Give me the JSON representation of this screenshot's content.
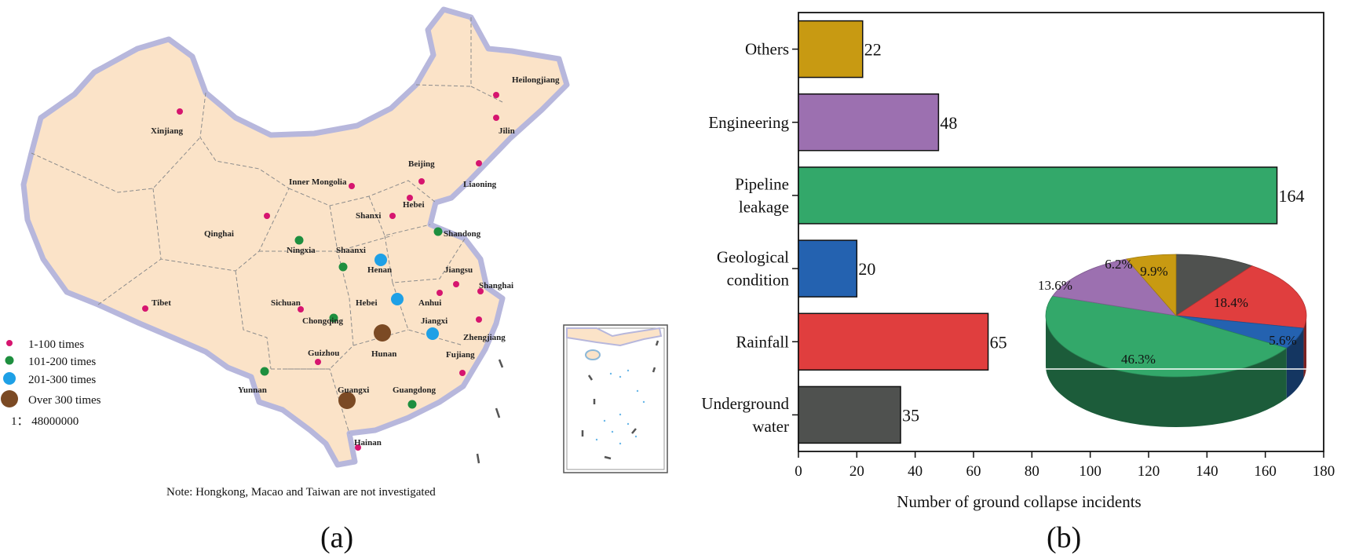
{
  "panel_a": {
    "label": "(a)",
    "note": "Note: Hongkong, Macao and Taiwan are not investigated",
    "scale": "1： 48000000",
    "legend": [
      {
        "label": "1-100 times",
        "color": "#d6156f",
        "size": "small"
      },
      {
        "label": "101-200 times",
        "color": "#1e8f3f",
        "size": "medium"
      },
      {
        "label": "201-300 times",
        "color": "#1ea0e6",
        "size": "large"
      },
      {
        "label": "Over 300 times",
        "color": "#7b4a24",
        "size": "xlarge"
      }
    ],
    "provinces": [
      {
        "name": "Heilongjiang",
        "level": 1
      },
      {
        "name": "Jilin",
        "level": 1
      },
      {
        "name": "Xinjiang",
        "level": 1
      },
      {
        "name": "Liaoning",
        "level": 1
      },
      {
        "name": "Beijing",
        "level": 1
      },
      {
        "name": "Inner Mongolia",
        "level": 1
      },
      {
        "name": "Hebei",
        "level": 1
      },
      {
        "name": "Shanxi",
        "level": 1
      },
      {
        "name": "Qinghai",
        "level": 1
      },
      {
        "name": "Shandong",
        "level": 2
      },
      {
        "name": "Ningxia",
        "level": 2
      },
      {
        "name": "Shaanxi",
        "level": 2
      },
      {
        "name": "Henan",
        "level": 3
      },
      {
        "name": "Jiangsu",
        "level": 1
      },
      {
        "name": "Shanghai",
        "level": 1
      },
      {
        "name": "Tibet",
        "level": 1
      },
      {
        "name": "Sichuan",
        "level": 1
      },
      {
        "name": "Hebei",
        "level": 3
      },
      {
        "name": "Anhui",
        "level": 1
      },
      {
        "name": "Chongqing",
        "level": 2
      },
      {
        "name": "Jiangxi",
        "level": 3
      },
      {
        "name": "Zhengjiang",
        "level": 1
      },
      {
        "name": "Hunan",
        "level": 4
      },
      {
        "name": "Guizhou",
        "level": 1
      },
      {
        "name": "Fujiang",
        "level": 1
      },
      {
        "name": "Yunnan",
        "level": 2
      },
      {
        "name": "Guangxi",
        "level": 4
      },
      {
        "name": "Guangdong",
        "level": 2
      },
      {
        "name": "Hainan",
        "level": 1
      }
    ]
  },
  "panel_b": {
    "label": "(b)"
  },
  "chart_data": [
    {
      "type": "bar",
      "orientation": "horizontal",
      "categories": [
        "Others",
        "Engineering",
        "Pipeline leakage",
        "Geological condition",
        "Rainfall",
        "Underground water"
      ],
      "category_lines": [
        [
          "Others"
        ],
        [
          "Engineering"
        ],
        [
          "Pipeline",
          "leakage"
        ],
        [
          "Geological",
          "condition"
        ],
        [
          "Rainfall"
        ],
        [
          "Underground",
          "water"
        ]
      ],
      "values": [
        22,
        48,
        164,
        20,
        65,
        35
      ],
      "colors": [
        "#c89a12",
        "#9c70b0",
        "#33a86a",
        "#2462b0",
        "#e03e3e",
        "#4f514f"
      ],
      "title": "",
      "xlabel": "Number of ground collapse incidents",
      "ylabel": "",
      "xlim": [
        0,
        180
      ],
      "xticks": [
        0,
        20,
        40,
        60,
        80,
        100,
        120,
        140,
        160,
        180
      ],
      "grid": false
    },
    {
      "type": "pie",
      "style": "3d",
      "slices": [
        {
          "category": "Underground water",
          "percent": 9.9,
          "label": "9.9%",
          "color": "#4f514f"
        },
        {
          "category": "Rainfall",
          "percent": 18.4,
          "label": "18.4%",
          "color": "#e03e3e"
        },
        {
          "category": "Geological condition",
          "percent": 5.6,
          "label": "5.6%",
          "color": "#2462b0"
        },
        {
          "category": "Pipeline leakage",
          "percent": 46.3,
          "label": "46.3%",
          "color": "#33a86a"
        },
        {
          "category": "Engineering",
          "percent": 13.6,
          "label": "13.6%",
          "color": "#9c70b0"
        },
        {
          "category": "Others",
          "percent": 6.2,
          "label": "6.2%",
          "color": "#c89a12"
        }
      ]
    }
  ]
}
